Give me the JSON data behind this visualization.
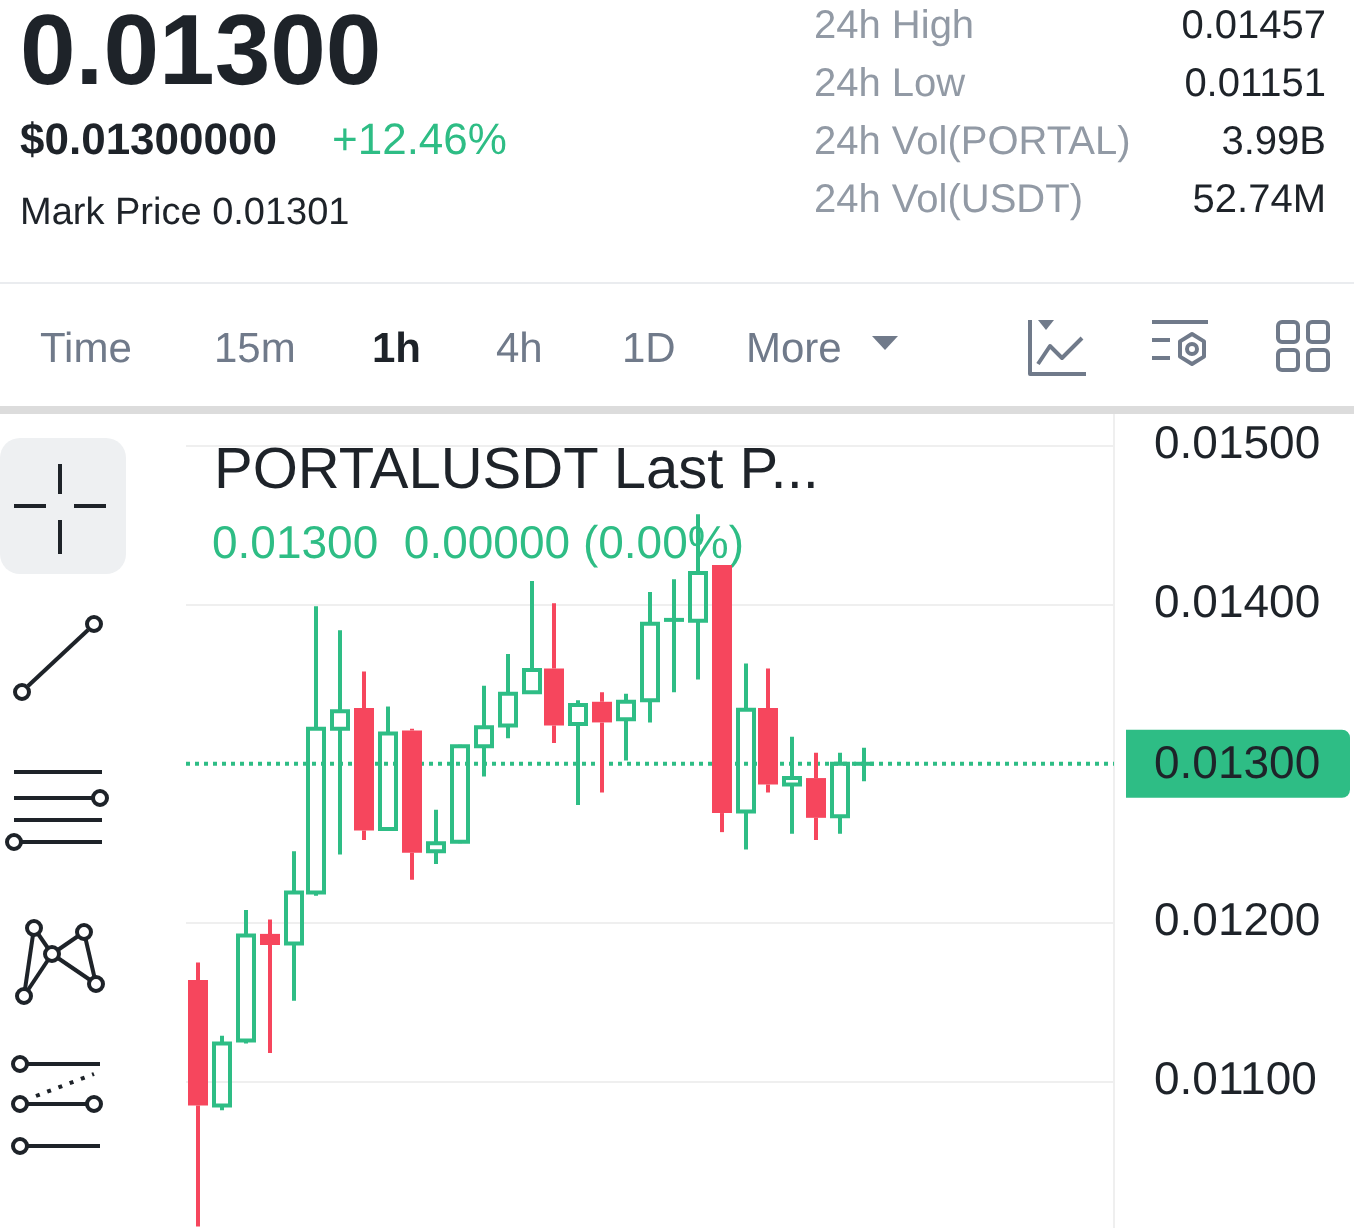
{
  "chart_data": {
    "type": "candlestick",
    "title": "PORTALUSDT Last P...",
    "subtitle": "0.01300  0.00000 (0.00%)",
    "categories": [
      null,
      null,
      null,
      null,
      null,
      null,
      null,
      null,
      null,
      null,
      null,
      null,
      null,
      null,
      null,
      null,
      null,
      null,
      null,
      null,
      null,
      null,
      null,
      null,
      null,
      null,
      null,
      null,
      null,
      null,
      null,
      null,
      null,
      null,
      null,
      null,
      null,
      null,
      null
    ],
    "ohlc": [
      [
        0.01164,
        0.01175,
        0.01009,
        0.01085
      ],
      [
        0.01085,
        0.01129,
        0.01082,
        0.01124
      ],
      [
        0.01126,
        0.01208,
        0.01124,
        0.01192
      ],
      [
        0.01193,
        0.01202,
        0.01118,
        0.01186
      ],
      [
        0.01187,
        0.01245,
        0.01151,
        0.01219
      ],
      [
        0.01219,
        0.01399,
        0.01217,
        0.01322
      ],
      [
        0.01322,
        0.01384,
        0.01243,
        0.01333
      ],
      [
        0.01335,
        0.01358,
        0.01252,
        0.01258
      ],
      [
        0.01259,
        0.01336,
        0.01259,
        0.01319
      ],
      [
        0.01321,
        0.01322,
        0.01227,
        0.01244
      ],
      [
        0.01245,
        0.01271,
        0.01237,
        0.0125
      ],
      [
        0.01251,
        0.01312,
        0.0125,
        0.01311
      ],
      [
        0.01311,
        0.01349,
        0.01292,
        0.01323
      ],
      [
        0.01324,
        0.01369,
        0.01316,
        0.01344
      ],
      [
        0.01345,
        0.01415,
        0.01344,
        0.01359
      ],
      [
        0.0136,
        0.01401,
        0.01313,
        0.01324
      ],
      [
        0.01325,
        0.0134,
        0.01274,
        0.01337
      ],
      [
        0.01339,
        0.01345,
        0.01282,
        0.01326
      ],
      [
        0.01328,
        0.01344,
        0.01302,
        0.01339
      ],
      [
        0.0134,
        0.01408,
        0.01326,
        0.01388
      ],
      [
        0.0139,
        0.01416,
        0.01345,
        0.01391
      ],
      [
        0.0139,
        0.01457,
        0.01353,
        0.0142
      ],
      [
        0.01425,
        0.01425,
        0.01257,
        0.01269
      ],
      [
        0.0127,
        0.01363,
        0.01246,
        0.01334
      ],
      [
        0.01335,
        0.0136,
        0.01282,
        0.01287
      ],
      [
        0.01287,
        0.01317,
        0.01256,
        0.01291
      ],
      [
        0.01291,
        0.01307,
        0.01252,
        0.01266
      ],
      [
        0.01267,
        0.01307,
        0.01256,
        0.013
      ],
      [
        0.013,
        0.0131,
        0.01289,
        0.013
      ],
      null,
      null,
      null,
      null,
      null,
      null,
      null,
      null,
      null,
      null
    ],
    "colors": [
      "#f6465d",
      "#2ebd85",
      "#2ebd85",
      "#f6465d",
      "#2ebd85",
      "#2ebd85",
      "#2ebd85",
      "#f6465d",
      "#2ebd85",
      "#f6465d",
      "#2ebd85",
      "#2ebd85",
      "#2ebd85",
      "#2ebd85",
      "#2ebd85",
      "#f6465d",
      "#2ebd85",
      "#f6465d",
      "#2ebd85",
      "#2ebd85",
      "#2ebd85",
      "#2ebd85",
      "#f6465d",
      "#2ebd85",
      "#f6465d",
      "#2ebd85",
      "#f6465d",
      "#2ebd85",
      "#2ebd85",
      null,
      null,
      null,
      null,
      null,
      null,
      null,
      null,
      null,
      null
    ],
    "ylim": [
      0.01008,
      0.0152
    ],
    "yticks": [
      {
        "value": 0.011,
        "label": "0.01100"
      },
      {
        "value": 0.012,
        "label": "0.01200"
      },
      {
        "value": 0.014,
        "label": "0.01400"
      },
      {
        "value": 0.015,
        "label": "0.01500"
      }
    ],
    "tick_labels": "y",
    "grid": "y",
    "ref_lines": [
      {
        "axis": "y",
        "value": 0.013,
        "label": "0.01300",
        "color": "#2ebd85",
        "line_style": "dotted"
      }
    ],
    "annotations": [
      "0.01300",
      "$0.01300000",
      "+12.46%",
      "Mark Price 0.01301",
      "24h High",
      "0.01457",
      "24h Low",
      "0.01151",
      "24h Vol(PORTAL)",
      "3.99B",
      "24h Vol(USDT)",
      "52.74M",
      "Time",
      "15m",
      "1h",
      "4h",
      "1D",
      "More"
    ]
  }
}
